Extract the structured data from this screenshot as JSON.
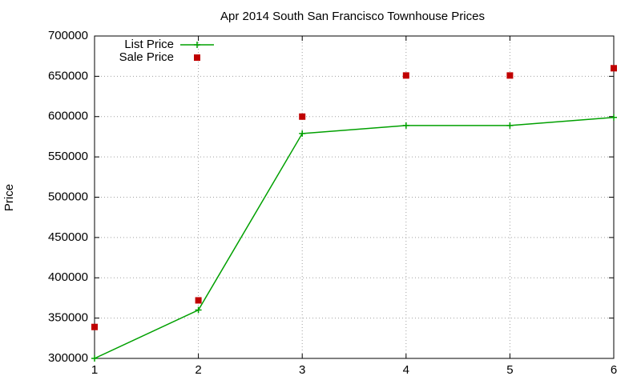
{
  "chart_data": {
    "type": "line",
    "title": "Apr 2014 South San Francisco Townhouse Prices",
    "y_label": "Price",
    "x": [
      1,
      2,
      3,
      4,
      5,
      6
    ],
    "xlim": [
      1,
      6
    ],
    "xticks": [
      1,
      2,
      3,
      4,
      5,
      6
    ],
    "ylim": [
      300000,
      700000
    ],
    "yticks": [
      300000,
      350000,
      400000,
      450000,
      500000,
      550000,
      600000,
      650000,
      700000
    ],
    "grid": true,
    "legend": "top-left",
    "series": [
      {
        "name": "List Price",
        "color": "#00a000",
        "style": "linespoints",
        "values": [
          300000,
          360000,
          579000,
          589000,
          589000,
          599000
        ]
      },
      {
        "name": "Sale Price",
        "color": "#c00000",
        "style": "points",
        "values": [
          339000,
          372000,
          600000,
          651000,
          651000,
          660000
        ]
      }
    ]
  }
}
